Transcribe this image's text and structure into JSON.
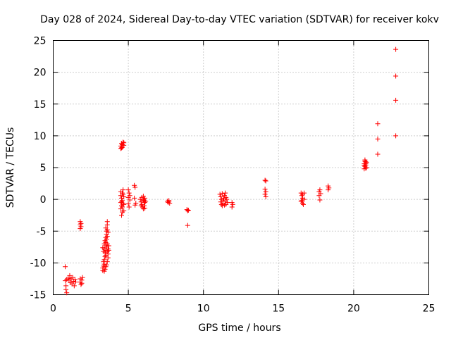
{
  "chart_data": {
    "type": "scatter",
    "title": "Day 028 of 2024, Sidereal Day-to-day VTEC variation (SDTVAR) for receiver kokv",
    "xlabel": "GPS time / hours",
    "ylabel": "SDTVAR / TECUs",
    "xlim": [
      0,
      25
    ],
    "ylim": [
      -15,
      25
    ],
    "xticks": [
      0,
      5,
      10,
      15,
      20,
      25
    ],
    "yticks": [
      -15,
      -10,
      -5,
      0,
      5,
      10,
      15,
      20,
      25
    ],
    "grid": true,
    "marker": "+",
    "color": "#ff0000",
    "series": [
      {
        "name": "SDTVAR",
        "points": [
          [
            0.8,
            -10.6
          ],
          [
            0.8,
            -12.8
          ],
          [
            0.85,
            -13.6
          ],
          [
            0.85,
            -14.2
          ],
          [
            0.9,
            -12.6
          ],
          [
            0.9,
            -14.7
          ],
          [
            1.0,
            -12.4
          ],
          [
            1.05,
            -12.7
          ],
          [
            1.1,
            -12.0
          ],
          [
            1.15,
            -13.1
          ],
          [
            1.2,
            -12.5
          ],
          [
            1.25,
            -13.3
          ],
          [
            1.3,
            -12.3
          ],
          [
            1.35,
            -12.9
          ],
          [
            1.4,
            -13.6
          ],
          [
            1.45,
            -12.6
          ],
          [
            1.5,
            -13.0
          ],
          [
            1.8,
            -3.5
          ],
          [
            1.8,
            -4.0
          ],
          [
            1.8,
            -4.6
          ],
          [
            1.85,
            -3.8
          ],
          [
            1.85,
            -4.3
          ],
          [
            1.8,
            -12.5
          ],
          [
            1.8,
            -13.0
          ],
          [
            1.85,
            -13.4
          ],
          [
            1.9,
            -12.7
          ],
          [
            1.9,
            -13.2
          ],
          [
            1.95,
            -12.3
          ],
          [
            3.3,
            -11.2
          ],
          [
            3.3,
            -10.8
          ],
          [
            3.35,
            -10.5
          ],
          [
            3.35,
            -9.8
          ],
          [
            3.4,
            -10.2
          ],
          [
            3.4,
            -9.5
          ],
          [
            3.4,
            -7.8
          ],
          [
            3.3,
            -7.6
          ],
          [
            3.45,
            -9.0
          ],
          [
            3.45,
            -8.4
          ],
          [
            3.5,
            -8.8
          ],
          [
            3.5,
            -8.0
          ],
          [
            3.5,
            -7.2
          ],
          [
            3.45,
            -6.5
          ],
          [
            3.5,
            -6.0
          ],
          [
            3.55,
            -5.5
          ],
          [
            3.55,
            -5.0
          ],
          [
            3.5,
            -4.5
          ],
          [
            3.6,
            -4.0
          ],
          [
            3.6,
            -3.5
          ],
          [
            3.55,
            -7.5
          ],
          [
            3.6,
            -7.0
          ],
          [
            3.6,
            -8.2
          ],
          [
            3.65,
            -8.6
          ],
          [
            3.65,
            -9.2
          ],
          [
            3.6,
            -9.8
          ],
          [
            3.55,
            -10.3
          ],
          [
            3.5,
            -10.6
          ],
          [
            3.45,
            -11.0
          ],
          [
            3.4,
            -11.3
          ],
          [
            3.65,
            -7.8
          ],
          [
            3.7,
            -7.3
          ],
          [
            3.7,
            -8.0
          ],
          [
            3.5,
            -6.8
          ],
          [
            3.55,
            -6.3
          ],
          [
            3.6,
            -5.8
          ],
          [
            3.65,
            -5.2
          ],
          [
            3.6,
            -4.8
          ],
          [
            3.35,
            -8.2
          ],
          [
            3.4,
            -7.0
          ],
          [
            4.5,
            8.0
          ],
          [
            4.5,
            8.4
          ],
          [
            4.55,
            8.8
          ],
          [
            4.6,
            8.2
          ],
          [
            4.6,
            8.6
          ],
          [
            4.65,
            9.0
          ],
          [
            4.7,
            8.5
          ],
          [
            4.7,
            8.9
          ],
          [
            4.55,
            8.1
          ],
          [
            4.5,
            1.2
          ],
          [
            4.5,
            0.6
          ],
          [
            4.55,
            0.2
          ],
          [
            4.5,
            -0.5
          ],
          [
            4.55,
            -1.0
          ],
          [
            4.5,
            -1.5
          ],
          [
            4.6,
            -2.0
          ],
          [
            4.55,
            -2.5
          ],
          [
            4.6,
            -0.2
          ],
          [
            4.65,
            0.8
          ],
          [
            4.65,
            1.5
          ],
          [
            4.7,
            -0.8
          ],
          [
            4.7,
            -1.8
          ],
          [
            4.6,
            1.0
          ],
          [
            4.55,
            -0.3
          ],
          [
            4.6,
            -1.2
          ],
          [
            4.65,
            -0.6
          ],
          [
            4.7,
            0.4
          ],
          [
            5.0,
            0.3
          ],
          [
            5.05,
            1.0
          ],
          [
            5.0,
            1.5
          ],
          [
            5.1,
            -0.1
          ],
          [
            5.05,
            -1.2
          ],
          [
            5.1,
            0.6
          ],
          [
            5.0,
            -0.7
          ],
          [
            5.4,
            2.2
          ],
          [
            5.45,
            1.9
          ],
          [
            5.4,
            0.2
          ],
          [
            5.45,
            -0.9
          ],
          [
            5.5,
            -0.6
          ],
          [
            5.8,
            0.0
          ],
          [
            5.85,
            -0.4
          ],
          [
            5.9,
            -0.8
          ],
          [
            5.95,
            -1.2
          ],
          [
            6.0,
            -1.5
          ],
          [
            6.05,
            -1.0
          ],
          [
            6.1,
            -0.5
          ],
          [
            6.0,
            0.5
          ],
          [
            6.1,
            0.2
          ],
          [
            6.05,
            -0.2
          ],
          [
            5.9,
            0.3
          ],
          [
            6.15,
            -0.3
          ],
          [
            6.1,
            -1.4
          ],
          [
            5.85,
            -1.0
          ],
          [
            6.0,
            -0.1
          ],
          [
            7.6,
            -0.3
          ],
          [
            7.65,
            -0.5
          ],
          [
            7.7,
            -0.3
          ],
          [
            7.75,
            -0.6
          ],
          [
            7.7,
            -0.2
          ],
          [
            8.9,
            -1.6
          ],
          [
            8.95,
            -1.8
          ],
          [
            9.0,
            -1.7
          ],
          [
            8.95,
            -4.1
          ],
          [
            11.1,
            0.8
          ],
          [
            11.15,
            0.4
          ],
          [
            11.2,
            0.0
          ],
          [
            11.15,
            -0.4
          ],
          [
            11.2,
            -0.8
          ],
          [
            11.25,
            -1.0
          ],
          [
            11.3,
            -0.6
          ],
          [
            11.35,
            0.2
          ],
          [
            11.4,
            0.6
          ],
          [
            11.45,
            1.0
          ],
          [
            11.5,
            0.3
          ],
          [
            11.45,
            -0.3
          ],
          [
            11.3,
            -0.2
          ],
          [
            11.4,
            -0.9
          ],
          [
            11.25,
            0.9
          ],
          [
            11.55,
            0.0
          ],
          [
            11.6,
            -0.5
          ],
          [
            11.5,
            -0.8
          ],
          [
            11.9,
            -0.5
          ],
          [
            11.95,
            -0.8
          ],
          [
            11.9,
            -1.2
          ],
          [
            14.1,
            3.0
          ],
          [
            14.15,
            2.9
          ],
          [
            14.1,
            1.6
          ],
          [
            14.1,
            0.8
          ],
          [
            14.15,
            0.4
          ],
          [
            14.15,
            1.2
          ],
          [
            16.5,
            1.0
          ],
          [
            16.55,
            0.6
          ],
          [
            16.6,
            0.2
          ],
          [
            16.55,
            -0.2
          ],
          [
            16.6,
            -0.6
          ],
          [
            16.65,
            -0.8
          ],
          [
            16.5,
            -0.3
          ],
          [
            16.7,
            1.0
          ],
          [
            16.6,
            0.8
          ],
          [
            16.7,
            0.0
          ],
          [
            17.7,
            1.2
          ],
          [
            17.75,
            1.5
          ],
          [
            17.7,
            0.6
          ],
          [
            17.8,
            0.9
          ],
          [
            17.75,
            -0.1
          ],
          [
            18.3,
            2.1
          ],
          [
            18.35,
            1.8
          ],
          [
            18.3,
            1.5
          ],
          [
            20.7,
            4.8
          ],
          [
            20.75,
            5.2
          ],
          [
            20.7,
            5.6
          ],
          [
            20.8,
            5.9
          ],
          [
            20.75,
            6.2
          ],
          [
            20.8,
            5.4
          ],
          [
            20.85,
            5.0
          ],
          [
            20.8,
            4.9
          ],
          [
            20.7,
            5.3
          ],
          [
            20.85,
            5.8
          ],
          [
            20.75,
            6.0
          ],
          [
            20.8,
            5.6
          ],
          [
            21.6,
            11.9
          ],
          [
            21.6,
            9.5
          ],
          [
            21.6,
            7.1
          ],
          [
            22.8,
            23.6
          ],
          [
            22.8,
            19.4
          ],
          [
            22.8,
            15.6
          ],
          [
            22.8,
            10.0
          ]
        ]
      }
    ]
  }
}
